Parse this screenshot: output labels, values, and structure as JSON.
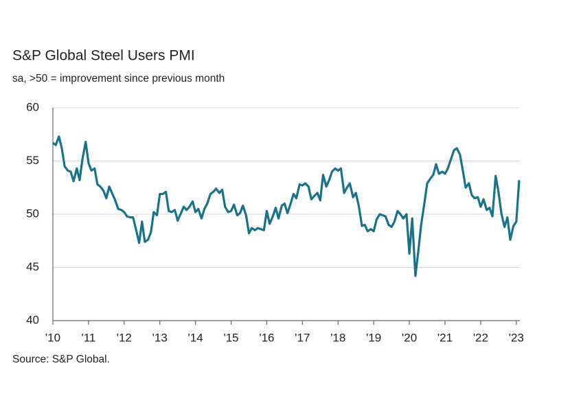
{
  "chart_data": {
    "type": "line",
    "title": "S&P Global Steel Users PMI",
    "subtitle": "sa, >50 = improvement since previous month",
    "source": "Source: S&P Global.",
    "xlim": [
      2010,
      2023.1
    ],
    "xticks": [
      {
        "value": 2010,
        "label": "'10"
      },
      {
        "value": 2011,
        "label": "'11"
      },
      {
        "value": 2012,
        "label": "'12"
      },
      {
        "value": 2013,
        "label": "'13"
      },
      {
        "value": 2014,
        "label": "'14"
      },
      {
        "value": 2015,
        "label": "'15"
      },
      {
        "value": 2016,
        "label": "'16"
      },
      {
        "value": 2017,
        "label": "'17"
      },
      {
        "value": 2018,
        "label": "'18"
      },
      {
        "value": 2019,
        "label": "'19"
      },
      {
        "value": 2020,
        "label": "'20"
      },
      {
        "value": 2021,
        "label": "'21"
      },
      {
        "value": 2022,
        "label": "'22"
      },
      {
        "value": 2023,
        "label": "'23"
      }
    ],
    "ylim": [
      40,
      60
    ],
    "yticks": [
      40,
      45,
      50,
      55,
      60
    ],
    "grid": true,
    "x": [
      2010,
      2010.08,
      2010.17,
      2010.25,
      2010.33,
      2010.42,
      2010.5,
      2010.58,
      2010.67,
      2010.75,
      2010.83,
      2010.92,
      2011,
      2011.08,
      2011.17,
      2011.25,
      2011.33,
      2011.42,
      2011.5,
      2011.58,
      2011.67,
      2011.75,
      2011.83,
      2011.92,
      2012,
      2012.08,
      2012.17,
      2012.25,
      2012.33,
      2012.42,
      2012.5,
      2012.58,
      2012.67,
      2012.75,
      2012.83,
      2012.92,
      2013,
      2013.08,
      2013.17,
      2013.25,
      2013.33,
      2013.42,
      2013.5,
      2013.58,
      2013.67,
      2013.75,
      2013.83,
      2013.92,
      2014,
      2014.08,
      2014.17,
      2014.25,
      2014.33,
      2014.42,
      2014.5,
      2014.58,
      2014.67,
      2014.75,
      2014.83,
      2014.92,
      2015,
      2015.08,
      2015.17,
      2015.25,
      2015.33,
      2015.42,
      2015.5,
      2015.58,
      2015.67,
      2015.75,
      2015.83,
      2015.92,
      2016,
      2016.08,
      2016.17,
      2016.25,
      2016.33,
      2016.42,
      2016.5,
      2016.58,
      2016.67,
      2016.75,
      2016.83,
      2016.92,
      2017,
      2017.08,
      2017.17,
      2017.25,
      2017.33,
      2017.42,
      2017.5,
      2017.58,
      2017.67,
      2017.75,
      2017.83,
      2017.92,
      2018,
      2018.08,
      2018.17,
      2018.25,
      2018.33,
      2018.42,
      2018.5,
      2018.58,
      2018.67,
      2018.75,
      2018.83,
      2018.92,
      2019,
      2019.08,
      2019.17,
      2019.25,
      2019.33,
      2019.42,
      2019.5,
      2019.58,
      2019.67,
      2019.75,
      2019.83,
      2019.92,
      2020,
      2020.08,
      2020.17,
      2020.25,
      2020.33,
      2020.42,
      2020.5,
      2020.58,
      2020.67,
      2020.75,
      2020.83,
      2020.92,
      2021,
      2021.08,
      2021.17,
      2021.25,
      2021.33,
      2021.42,
      2021.5,
      2021.58,
      2021.67,
      2021.75,
      2021.83,
      2021.92,
      2022,
      2022.08,
      2022.17,
      2022.25,
      2022.33,
      2022.42,
      2022.5,
      2022.58,
      2022.67,
      2022.75,
      2022.83,
      2022.92,
      2023,
      2023.08
    ],
    "series": [
      {
        "color": "#17728a",
        "values": [
          56.7,
          56.5,
          57.3,
          56.2,
          54.5,
          54.1,
          54.0,
          53.1,
          54.3,
          53.2,
          55.2,
          56.8,
          54.8,
          54.1,
          54.3,
          52.8,
          52.6,
          52.2,
          51.5,
          52.6,
          51.9,
          51.3,
          50.5,
          50.4,
          50.2,
          49.8,
          49.7,
          49.7,
          48.6,
          47.3,
          49.3,
          47.4,
          47.6,
          48.3,
          50.2,
          49.9,
          51.9,
          51.9,
          52.1,
          50.3,
          50.2,
          50.4,
          49.4,
          50.0,
          50.7,
          50.4,
          50.7,
          51.2,
          50.2,
          50.5,
          49.6,
          50.5,
          51.0,
          51.9,
          52.1,
          52.4,
          52.0,
          52.3,
          50.7,
          50.2,
          50.3,
          50.9,
          49.9,
          50.1,
          50.8,
          49.9,
          48.2,
          48.7,
          48.5,
          48.7,
          48.6,
          48.5,
          50.3,
          49.1,
          49.8,
          50.6,
          49.6,
          50.8,
          51.0,
          50.1,
          51.0,
          51.9,
          51.5,
          52.8,
          52.7,
          52.9,
          52.6,
          51.4,
          51.7,
          52.0,
          51.3,
          53.7,
          52.6,
          53.2,
          54.0,
          54.3,
          54.1,
          54.3,
          52.0,
          52.5,
          52.9,
          51.6,
          52.0,
          50.8,
          48.9,
          49.0,
          48.4,
          48.6,
          48.4,
          49.5,
          50.0,
          49.9,
          49.8,
          49.0,
          48.8,
          49.3,
          50.3,
          50.0,
          49.6,
          50.0,
          46.3,
          49.6,
          44.2,
          46.5,
          49.0,
          51.0,
          52.9,
          53.3,
          53.7,
          54.7,
          53.8,
          54.0,
          53.8,
          54.3,
          55.2,
          56.0,
          56.2,
          55.6,
          54.1,
          52.5,
          52.9,
          51.8,
          51.5,
          51.6,
          50.7,
          51.4,
          50.4,
          50.6,
          49.8,
          53.6,
          52.1,
          50.1,
          48.8,
          49.7,
          47.6,
          48.9,
          49.3,
          53.2
        ]
      }
    ]
  }
}
